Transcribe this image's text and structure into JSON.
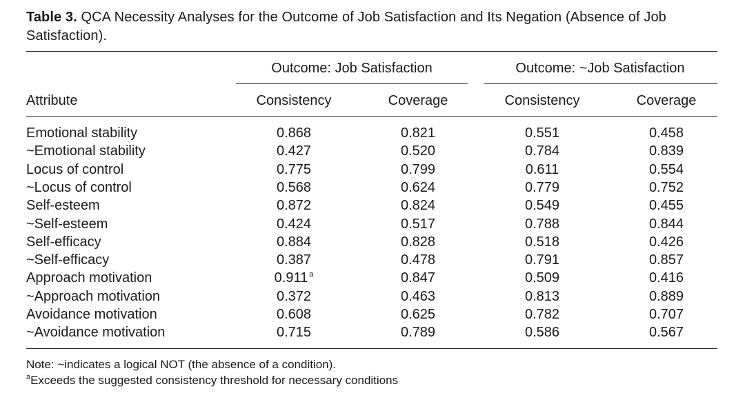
{
  "table": {
    "label": "Table 3.",
    "title": "QCA Necessity Analyses for the Outcome of Job Satisfaction and Its Negation (Absence of Job Satisfaction).",
    "group_headers": [
      "Outcome: Job Satisfaction",
      "Outcome: ~Job Satisfaction"
    ],
    "columns": {
      "attribute": "Attribute",
      "consistency": "Consistency",
      "coverage": "Coverage"
    },
    "rows": [
      {
        "attribute": "Emotional stability",
        "negated": false,
        "js_consistency": "0.868",
        "js_coverage": "0.821",
        "njs_consistency": "0.551",
        "njs_coverage": "0.458"
      },
      {
        "attribute": "~Emotional stability",
        "negated": true,
        "js_consistency": "0.427",
        "js_coverage": "0.520",
        "njs_consistency": "0.784",
        "njs_coverage": "0.839"
      },
      {
        "attribute": "Locus of control",
        "negated": false,
        "js_consistency": "0.775",
        "js_coverage": "0.799",
        "njs_consistency": "0.611",
        "njs_coverage": "0.554"
      },
      {
        "attribute": "~Locus of control",
        "negated": true,
        "js_consistency": "0.568",
        "js_coverage": "0.624",
        "njs_consistency": "0.779",
        "njs_coverage": "0.752"
      },
      {
        "attribute": "Self-esteem",
        "negated": false,
        "js_consistency": "0.872",
        "js_coverage": "0.824",
        "njs_consistency": "0.549",
        "njs_coverage": "0.455"
      },
      {
        "attribute": "~Self-esteem",
        "negated": true,
        "js_consistency": "0.424",
        "js_coverage": "0.517",
        "njs_consistency": "0.788",
        "njs_coverage": "0.844"
      },
      {
        "attribute": "Self-efficacy",
        "negated": false,
        "js_consistency": "0.884",
        "js_coverage": "0.828",
        "njs_consistency": "0.518",
        "njs_coverage": "0.426"
      },
      {
        "attribute": "~Self-efficacy",
        "negated": true,
        "js_consistency": "0.387",
        "js_coverage": "0.478",
        "njs_consistency": "0.791",
        "njs_coverage": "0.857"
      },
      {
        "attribute": "Approach motivation",
        "negated": false,
        "js_consistency": "0.911",
        "js_consistency_mark": "a",
        "js_coverage": "0.847",
        "njs_consistency": "0.509",
        "njs_coverage": "0.416"
      },
      {
        "attribute": "~Approach motivation",
        "negated": true,
        "js_consistency": "0.372",
        "js_coverage": "0.463",
        "njs_consistency": "0.813",
        "njs_coverage": "0.889"
      },
      {
        "attribute": "Avoidance motivation",
        "negated": false,
        "js_consistency": "0.608",
        "js_coverage": "0.625",
        "njs_consistency": "0.782",
        "njs_coverage": "0.707"
      },
      {
        "attribute": "~Avoidance motivation",
        "negated": true,
        "js_consistency": "0.715",
        "js_coverage": "0.789",
        "njs_consistency": "0.586",
        "njs_coverage": "0.567"
      }
    ],
    "notes": {
      "note": "Note: ~indicates a logical NOT (the absence of a condition).",
      "footnote_mark": "a",
      "footnote": "Exceeds the suggested consistency threshold for necessary conditions"
    }
  }
}
